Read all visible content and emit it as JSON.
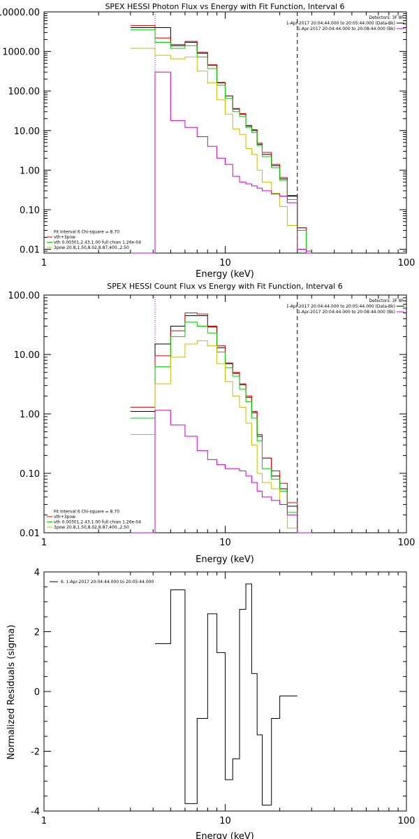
{
  "chart_data": [
    {
      "type": "line",
      "title": "SPEX HESSI Photon Flux vs Energy with Fit Function, Interval 6",
      "xlabel": "Energy (keV)",
      "ylabel": "",
      "x_scale": "log",
      "y_scale": "log",
      "xlim": [
        1,
        100
      ],
      "ylim": [
        0.008,
        10000
      ],
      "x_ticks": [
        {
          "v": 1,
          "label": "1"
        },
        {
          "v": 10,
          "label": "10"
        },
        {
          "v": 100,
          "label": "100"
        }
      ],
      "y_ticks": [
        {
          "v": 0.01,
          "label": "0.01"
        },
        {
          "v": 0.1,
          "label": "0.10"
        },
        {
          "v": 1,
          "label": "1.00"
        },
        {
          "v": 10,
          "label": "10.00"
        },
        {
          "v": 100,
          "label": "100.00"
        },
        {
          "v": 1000,
          "label": "1000.00"
        },
        {
          "v": 10000,
          "label": "10000.00"
        }
      ],
      "vlines": [
        {
          "x": 4.1,
          "style": "dotted",
          "color": "#cc00cc"
        },
        {
          "x": 25,
          "style": "dashed",
          "color": "#000000"
        }
      ],
      "header_labels": [
        {
          "text": "Detectors: 3F 8F",
          "color": "#000000"
        },
        {
          "text": "1-Apr-2017 20:04:44.000 to 20:05:44.000 (Data-Bk)",
          "color": "#000000",
          "swatch": "#000000"
        },
        {
          "text": "1-Apr-2017 20:04:44.000 to 20:08:44.000 (Bk)",
          "color": "#000000",
          "swatch": "#cc00cc"
        }
      ],
      "fit_labels": [
        {
          "text": "Fit Interval  6    Chi-square = 8.70",
          "color": "#000000"
        },
        {
          "text": "vth+3pow",
          "color": "#000000",
          "swatch": "#dd0000"
        },
        {
          "text": "vth 0.00301,2.43,1.00   full chian 1.26e-04",
          "color": "#000000",
          "swatch": "#00cc00"
        },
        {
          "text": "3pow 20.8,1.50,8.02,8.87,400.,2.50",
          "color": "#000000",
          "swatch": "#ccbb00"
        }
      ],
      "edges": [
        3,
        4.1,
        5,
        6,
        7,
        8,
        9,
        10,
        11,
        12,
        13,
        14,
        15,
        16,
        18,
        20,
        22,
        25,
        28,
        30
      ],
      "series": [
        {
          "color": "#000000",
          "values": [
            4000,
            4000,
            1400,
            1700,
            900,
            450,
            160,
            75,
            35,
            26,
            13,
            10,
            4.5,
            2.5,
            1.3,
            0.6,
            0.22,
            0.035,
            0.004
          ]
        },
        {
          "color": "#dd0000",
          "values": [
            4500,
            2200,
            1500,
            1800,
            950,
            460,
            165,
            75,
            36,
            27,
            13.5,
            10.5,
            4.8,
            2.8,
            1.4,
            0.65,
            0.23,
            0.035,
            0.009
          ]
        },
        {
          "color": "#00cc00",
          "values": [
            3500,
            1700,
            1200,
            1400,
            720,
            370,
            140,
            65,
            30,
            23,
            12,
            9,
            4.2,
            2.2,
            1.15,
            0.55,
            0.18,
            0.03,
            0.009
          ]
        },
        {
          "color": "#ccbb00",
          "values": [
            1200,
            800,
            650,
            720,
            320,
            160,
            60,
            26,
            11,
            8,
            3.5,
            2.5,
            1,
            0.5,
            0.26,
            0.12,
            0.04,
            0.01,
            0.002
          ]
        },
        {
          "color": "#cc00cc",
          "values": [
            0,
            300,
            18,
            12,
            7,
            4,
            2,
            1.4,
            0.7,
            0.5,
            0.45,
            0.4,
            0.35,
            0.3,
            0.25,
            0.22,
            0.15,
            0.01,
            0.001
          ]
        }
      ]
    },
    {
      "type": "line",
      "title": "SPEX HESSI Count Flux vs Energy with Fit Function, Interval 6",
      "xlabel": "Energy (keV)",
      "ylabel": "",
      "x_scale": "log",
      "y_scale": "log",
      "xlim": [
        1,
        100
      ],
      "ylim": [
        0.01,
        100
      ],
      "x_ticks": [
        {
          "v": 1,
          "label": "1"
        },
        {
          "v": 10,
          "label": "10"
        },
        {
          "v": 100,
          "label": "100"
        }
      ],
      "y_ticks": [
        {
          "v": 0.01,
          "label": "0.01"
        },
        {
          "v": 0.1,
          "label": "0.10"
        },
        {
          "v": 1,
          "label": "1.00"
        },
        {
          "v": 10,
          "label": "10.00"
        },
        {
          "v": 100,
          "label": "100.00"
        }
      ],
      "vlines": [
        {
          "x": 4.1,
          "style": "dotted",
          "color": "#cc00cc"
        },
        {
          "x": 25,
          "style": "dashed",
          "color": "#000000"
        }
      ],
      "header_labels": [
        {
          "text": "Detectors: 3F 8F",
          "color": "#000000"
        },
        {
          "text": "1-Apr-2017 20:04:44.000 to 20:05:44.000 (Data-Bk)",
          "color": "#000000",
          "swatch": "#000000"
        },
        {
          "text": "1-Apr-2017 20:04:44.000 to 20:08:44.000 (Bk)",
          "color": "#000000",
          "swatch": "#cc00cc"
        }
      ],
      "fit_labels": [
        {
          "text": "Fit Interval  6    Chi-square = 8.70",
          "color": "#000000"
        },
        {
          "text": "vth+3pow",
          "color": "#000000",
          "swatch": "#dd0000"
        },
        {
          "text": "vth 0.00301,2.43,1.00   full chian 1.26e-04",
          "color": "#000000",
          "swatch": "#00cc00"
        },
        {
          "text": "3pow 20.8,1.50,8.02,8.87,400.,2.50",
          "color": "#000000",
          "swatch": "#ccbb00"
        }
      ],
      "edges": [
        3,
        4.1,
        5,
        6,
        7,
        8,
        9,
        10,
        11,
        12,
        13,
        14,
        15,
        16,
        18,
        20,
        22,
        25,
        28,
        30
      ],
      "series": [
        {
          "color": "#000000",
          "values": [
            1.1,
            15,
            30,
            45,
            45,
            29,
            13,
            7,
            4.8,
            3.1,
            1.9,
            1.05,
            0.42,
            0.18,
            0.09,
            0.055,
            0.028,
            0.0085,
            0.003
          ]
        },
        {
          "color": "#dd0000",
          "values": [
            1.3,
            9.5,
            25,
            50,
            48,
            30,
            14,
            7.2,
            5,
            3.2,
            2,
            1.1,
            0.45,
            0.18,
            0.11,
            0.068,
            0.032,
            0.0085,
            0.003
          ]
        },
        {
          "color": "#00cc00",
          "values": [
            0.85,
            6.2,
            20,
            35,
            30,
            23,
            11,
            6,
            4.3,
            2.6,
            1.6,
            0.85,
            0.35,
            0.12,
            0.08,
            0.05,
            0.022,
            0.0085,
            0.003
          ]
        },
        {
          "color": "#ccbb00",
          "values": [
            0.45,
            3.2,
            9,
            15,
            17,
            14,
            7,
            3.5,
            2,
            1.3,
            0.7,
            0.3,
            0.1,
            0.07,
            0.055,
            0.03,
            0.012,
            0.0085,
            0.003
          ]
        },
        {
          "color": "#cc00cc",
          "values": [
            0,
            1.15,
            0.65,
            0.42,
            0.24,
            0.17,
            0.14,
            0.12,
            0.12,
            0.11,
            0.09,
            0.07,
            0.05,
            0.04,
            0.035,
            0.03,
            0.02,
            0.0085,
            0.003
          ]
        }
      ]
    },
    {
      "type": "line",
      "title": "",
      "xlabel": "Energy (keV)",
      "ylabel": "Normalized Residuals (sigma)",
      "x_scale": "log",
      "y_scale": "linear",
      "xlim": [
        1,
        100
      ],
      "ylim": [
        -4,
        4
      ],
      "x_ticks": [
        {
          "v": 1,
          "label": "1"
        },
        {
          "v": 10,
          "label": "10"
        },
        {
          "v": 100,
          "label": "100"
        }
      ],
      "y_ticks": [
        {
          "v": -4,
          "label": "-4"
        },
        {
          "v": -2,
          "label": "-2"
        },
        {
          "v": 0,
          "label": "0"
        },
        {
          "v": 2,
          "label": "2"
        },
        {
          "v": 4,
          "label": "4"
        }
      ],
      "header_labels": [
        {
          "text": "6.  1-Apr-2017 20:04:44.000 to 20:05:44.000",
          "color": "#000000",
          "swatch": "#000000"
        }
      ],
      "edges": [
        4.1,
        5,
        6,
        7,
        8,
        9,
        10,
        11,
        12,
        13,
        14,
        15,
        16,
        18,
        20,
        22,
        25
      ],
      "series": [
        {
          "color": "#000000",
          "values": [
            1.6,
            3.4,
            -3.75,
            -0.9,
            2.6,
            1.3,
            -2.95,
            -2.25,
            2.75,
            3.6,
            0.6,
            -1.45,
            -3.8,
            -0.9,
            -0.15,
            -0.15
          ]
        }
      ]
    }
  ]
}
